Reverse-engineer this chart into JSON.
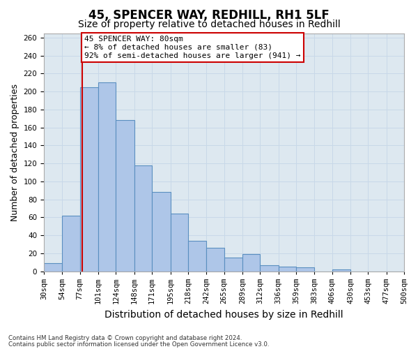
{
  "title": "45, SPENCER WAY, REDHILL, RH1 5LF",
  "subtitle": "Size of property relative to detached houses in Redhill",
  "xlabel": "Distribution of detached houses by size in Redhill",
  "ylabel": "Number of detached properties",
  "bar_edges": [
    30,
    54,
    77,
    101,
    124,
    148,
    171,
    195,
    218,
    242,
    265,
    289,
    312,
    336,
    359,
    383,
    406,
    430,
    453,
    477,
    500
  ],
  "bar_heights": [
    9,
    62,
    205,
    210,
    168,
    118,
    88,
    64,
    34,
    26,
    15,
    19,
    7,
    5,
    4,
    0,
    2,
    0,
    0,
    0
  ],
  "bar_color": "#aec6e8",
  "bar_edge_color": "#5a8fc0",
  "property_line_x": 80,
  "property_line_color": "#cc0000",
  "annotation_text": "45 SPENCER WAY: 80sqm\n← 8% of detached houses are smaller (83)\n92% of semi-detached houses are larger (941) →",
  "annotation_box_color": "#cc0000",
  "annotation_bg_color": "#ffffff",
  "ylim": [
    0,
    265
  ],
  "yticks": [
    0,
    20,
    40,
    60,
    80,
    100,
    120,
    140,
    160,
    180,
    200,
    220,
    240,
    260
  ],
  "tick_labels": [
    "30sqm",
    "54sqm",
    "77sqm",
    "101sqm",
    "124sqm",
    "148sqm",
    "171sqm",
    "195sqm",
    "218sqm",
    "242sqm",
    "265sqm",
    "289sqm",
    "312sqm",
    "336sqm",
    "359sqm",
    "383sqm",
    "406sqm",
    "430sqm",
    "453sqm",
    "477sqm",
    "500sqm"
  ],
  "grid_color": "#c8d8e8",
  "bg_color": "#dde8f0",
  "footer_line1": "Contains HM Land Registry data © Crown copyright and database right 2024.",
  "footer_line2": "Contains public sector information licensed under the Open Government Licence v3.0.",
  "title_fontsize": 12,
  "subtitle_fontsize": 10,
  "axis_label_fontsize": 9,
  "tick_fontsize": 7.5
}
